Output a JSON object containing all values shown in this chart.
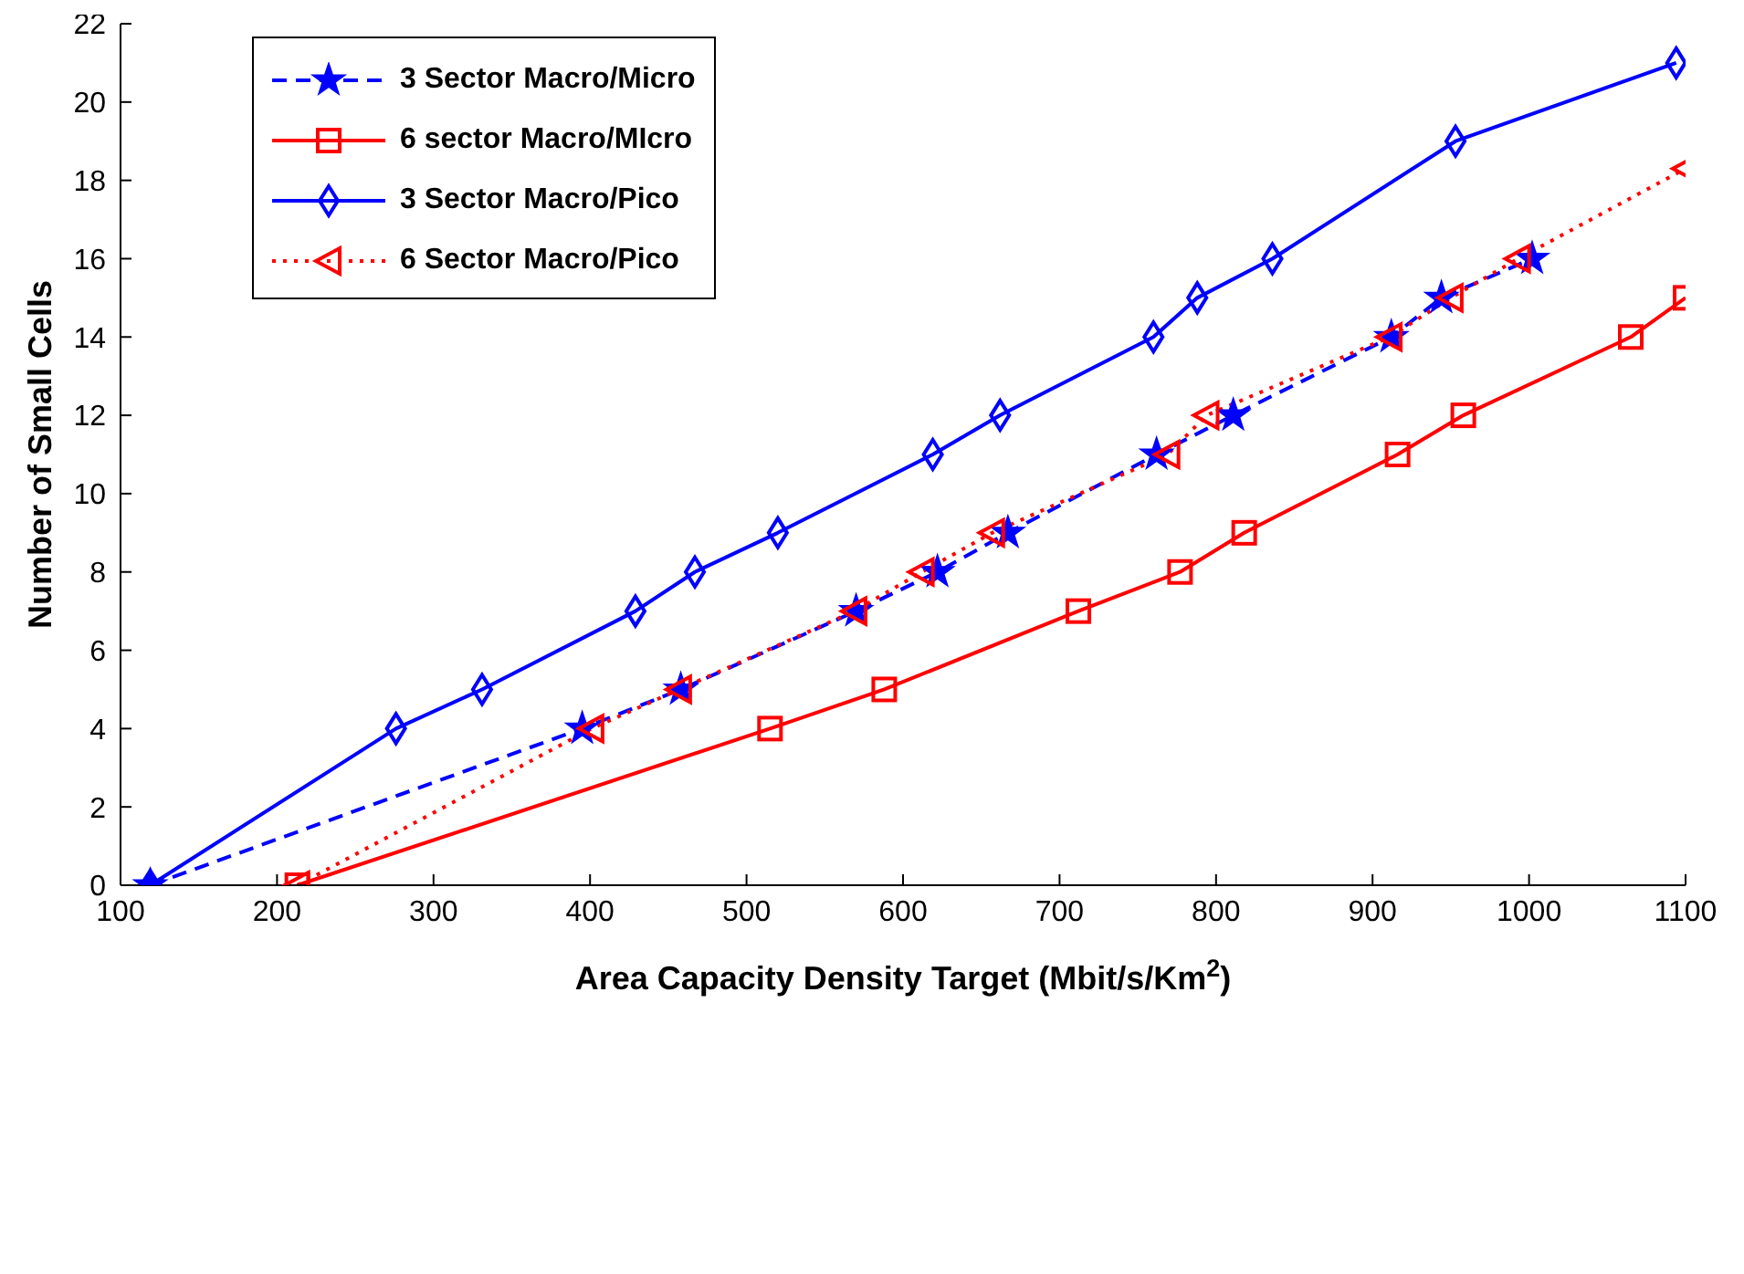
{
  "chart_data": {
    "type": "line",
    "xlabel": "Area Capacity Density Target (Mbit/s/Km$^{2}$)",
    "ylabel": "Number of Small Cells",
    "xlim": [
      100,
      1100
    ],
    "xticks": [
      100,
      200,
      300,
      400,
      500,
      600,
      700,
      800,
      900,
      1000,
      1100
    ],
    "ylim": [
      0,
      22
    ],
    "yticks": [
      0,
      2,
      4,
      6,
      8,
      10,
      12,
      14,
      16,
      18,
      20,
      22
    ],
    "grid": false,
    "legend": "top left",
    "series": [
      {
        "name": "3 Sector Macro/Micro",
        "color": "#0000ff",
        "marker": "star",
        "line_style": "dashed",
        "x": [
          119,
          395,
          458,
          570,
          622,
          667,
          762,
          811,
          912,
          944,
          1002
        ],
        "values": [
          0,
          4,
          5,
          7,
          8,
          9,
          11,
          12,
          14,
          15,
          16
        ]
      },
      {
        "name": "6 sector Macro/MIcro",
        "color": "#ff0000",
        "marker": "square",
        "line_style": "solid",
        "x": [
          213,
          515,
          588,
          712,
          777,
          818,
          916,
          958,
          1065,
          1100
        ],
        "values": [
          0,
          4,
          5,
          7,
          8,
          9,
          11,
          12,
          14,
          15
        ]
      },
      {
        "name": "3 Sector Macro/Pico",
        "color": "#0000ff",
        "marker": "diamond",
        "line_style": "solid",
        "x": [
          119,
          276,
          331,
          429,
          467,
          520,
          619,
          662,
          760,
          788,
          836,
          953,
          1094
        ],
        "values": [
          0,
          4,
          5,
          7,
          8,
          9,
          11,
          12,
          14,
          15,
          16,
          19,
          21
        ]
      },
      {
        "name": "6 Sector Macro/Pico",
        "color": "#ff0000",
        "marker": "triangle",
        "line_style": "dotted",
        "x": [
          213,
          401,
          457,
          569,
          612,
          657,
          769,
          794,
          911,
          950,
          993,
          1100
        ],
        "values": [
          0,
          4,
          5,
          7,
          8,
          9,
          11,
          12,
          14,
          15,
          16,
          18.3
        ]
      }
    ]
  }
}
